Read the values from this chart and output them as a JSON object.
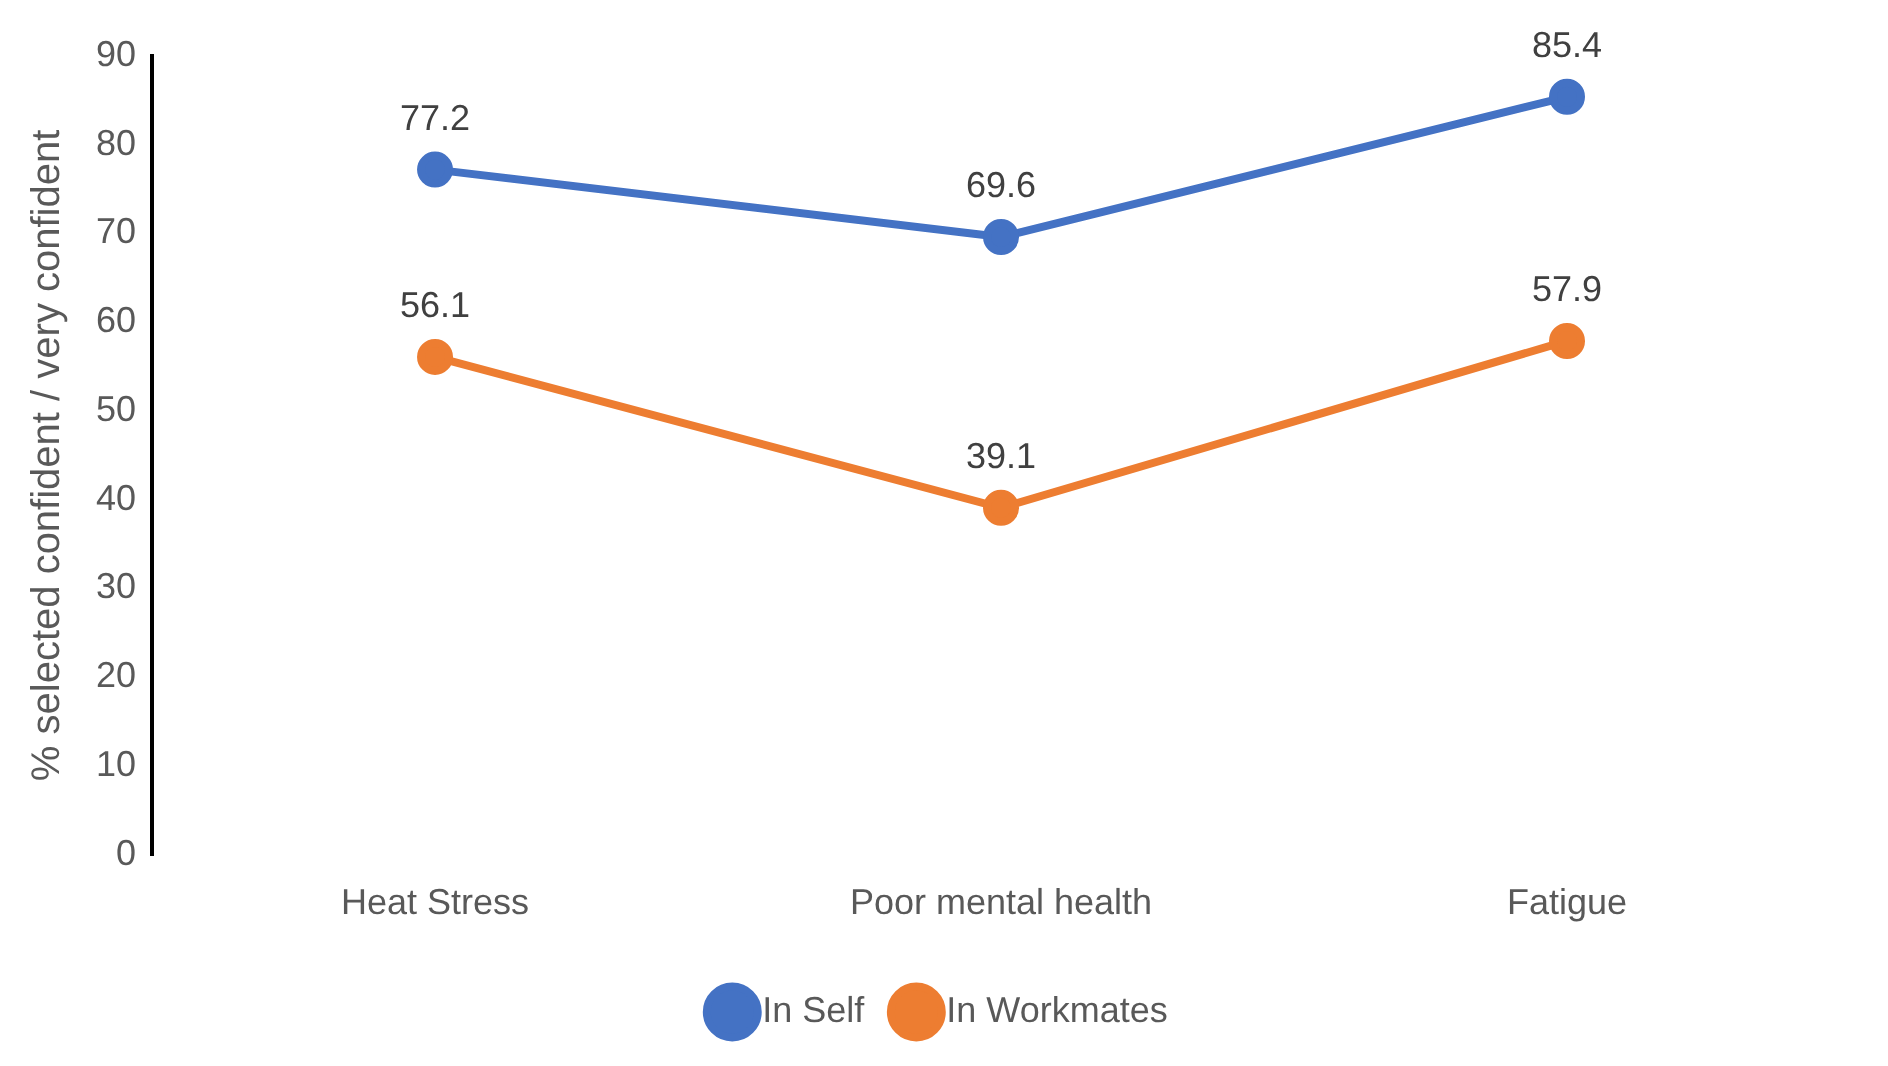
{
  "chart_data": {
    "type": "line",
    "ylabel": "% selected confident / very confident",
    "categories": [
      "Heat Stress",
      "Poor mental health",
      "Fatigue"
    ],
    "series": [
      {
        "name": "In Self",
        "color": "#4472c4",
        "values": [
          77.2,
          69.6,
          85.4
        ]
      },
      {
        "name": "In Workmates",
        "color": "#ed7d31",
        "values": [
          56.1,
          39.1,
          57.9
        ]
      }
    ],
    "ylim": [
      0,
      90
    ],
    "yticks": [
      0,
      10,
      20,
      30,
      40,
      50,
      60,
      70,
      80,
      90
    ],
    "grid": false,
    "legend": "bottom",
    "marker": "circle",
    "line_style": "solid",
    "data_labels": true
  }
}
